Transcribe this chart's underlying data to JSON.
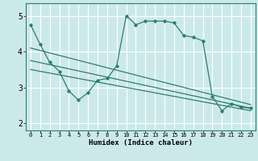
{
  "xlabel": "Humidex (Indice chaleur)",
  "ylabel": "",
  "xlim": [
    -0.5,
    23.5
  ],
  "ylim": [
    1.8,
    5.35
  ],
  "bg_color": "#cce9ea",
  "grid_color": "#ffffff",
  "line_color": "#2e7d6e",
  "line1_x": [
    0,
    1,
    2,
    3,
    4,
    5,
    6,
    7,
    8,
    9,
    10,
    11,
    12,
    13,
    14,
    15,
    16,
    17,
    18,
    19,
    20,
    21,
    22,
    23
  ],
  "line1_y": [
    4.75,
    4.2,
    3.7,
    3.45,
    2.9,
    2.65,
    2.85,
    3.2,
    3.25,
    3.6,
    5.0,
    4.75,
    4.85,
    4.85,
    4.85,
    4.8,
    4.45,
    4.4,
    4.3,
    2.75,
    2.35,
    2.55,
    2.45,
    2.42
  ],
  "line2_x": [
    0,
    23
  ],
  "line2_y": [
    4.1,
    2.52
  ],
  "line3_x": [
    0,
    23
  ],
  "line3_y": [
    3.75,
    2.42
  ],
  "line4_x": [
    0,
    23
  ],
  "line4_y": [
    3.5,
    2.35
  ],
  "xticks": [
    0,
    1,
    2,
    3,
    4,
    5,
    6,
    7,
    8,
    9,
    10,
    11,
    12,
    13,
    14,
    15,
    16,
    17,
    18,
    19,
    20,
    21,
    22,
    23
  ],
  "yticks": [
    2,
    3,
    4,
    5
  ]
}
